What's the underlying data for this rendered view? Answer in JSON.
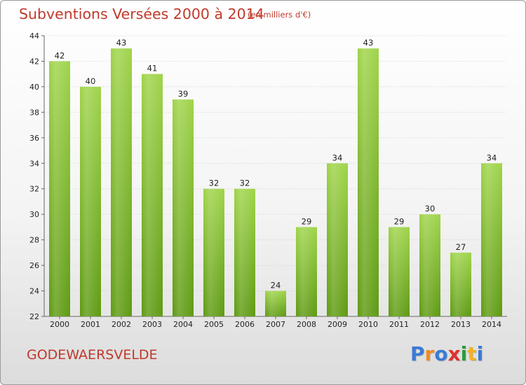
{
  "header": {
    "title": "Subventions Versées 2000 à 2014",
    "subtitle": "(en milliers d'€)"
  },
  "footer": {
    "commune": "GODEWAERSVELDE",
    "brand_letters": [
      "P",
      "r",
      "o",
      "x",
      "i",
      "t",
      "i"
    ],
    "brand_colors": [
      "#3a7bd5",
      "#f08a24",
      "#3a7bd5",
      "#e0312e",
      "#2a9d3a",
      "#f0b323",
      "#3a7bd5"
    ]
  },
  "chart_data": {
    "type": "bar",
    "title": "Subventions Versées 2000 à 2014",
    "subtitle": "(en milliers d'€)",
    "categories": [
      "2000",
      "2001",
      "2002",
      "2003",
      "2004",
      "2005",
      "2006",
      "2007",
      "2008",
      "2009",
      "2010",
      "2011",
      "2012",
      "2013",
      "2014"
    ],
    "values": [
      42,
      40,
      43,
      41,
      39,
      32,
      32,
      24,
      29,
      34,
      43,
      29,
      30,
      27,
      34
    ],
    "ylim": [
      22,
      44
    ],
    "yticks": [
      22,
      24,
      26,
      28,
      30,
      32,
      34,
      36,
      38,
      40,
      42,
      44
    ],
    "grid": true,
    "bar_color_top": "#9fd44a",
    "bar_color_bottom": "#5e9a12"
  }
}
